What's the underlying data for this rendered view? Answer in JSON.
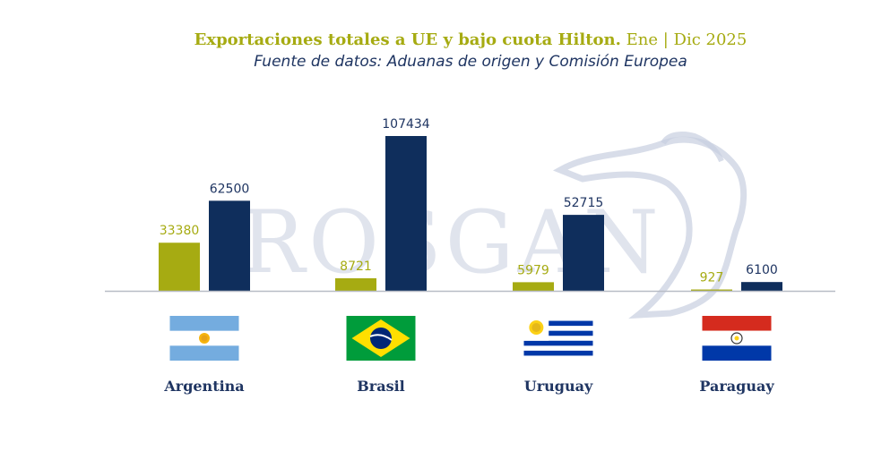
{
  "header": {
    "title_bold": "Exportaciones totales a UE y bajo cuota Hilton.",
    "title_rest": "Ene | Dic 2025",
    "subtitle": "Fuente de datos: Aduanas de origen y Comisión Europea"
  },
  "watermark": {
    "text": "ROSGAN"
  },
  "colors": {
    "hilton": "#a6ab12",
    "total_ue": "#0f2e5c",
    "label_dark": "#1f3562",
    "baseline": "#b8bcc6"
  },
  "chart_data": {
    "type": "bar",
    "categories": [
      "Argentina",
      "Brasil",
      "Uruguay",
      "Paraguay"
    ],
    "series": [
      {
        "values": [
          33380,
          8721,
          5979,
          927
        ],
        "color": "#a6ab12"
      },
      {
        "values": [
          62500,
          107434,
          52715,
          6100
        ],
        "color": "#0f2e5c"
      }
    ],
    "ylim": [
      0,
      107434
    ],
    "grid": false,
    "legend": "none"
  },
  "flags": [
    "argentina-flag-icon",
    "brasil-flag-icon",
    "uruguay-flag-icon",
    "paraguay-flag-icon"
  ]
}
